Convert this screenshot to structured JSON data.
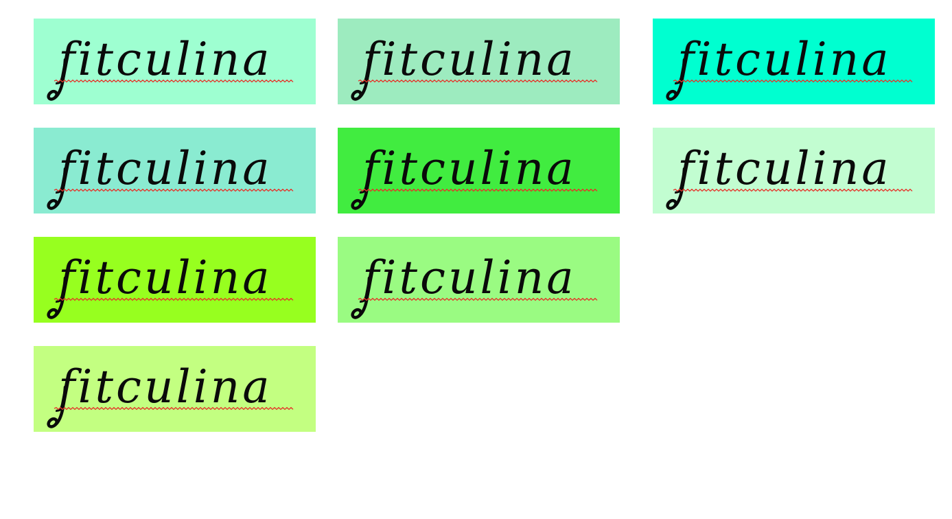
{
  "tiles": [
    {
      "text": "fitculina",
      "bg": "#9effd1"
    },
    {
      "text": "fitculina",
      "bg": "#9debbf"
    },
    {
      "text": "fitculina",
      "bg": "#00ffd0"
    },
    {
      "text": "fitculina",
      "bg": "#8aebd1"
    },
    {
      "text": "fitculina",
      "bg": "#41ec40"
    },
    {
      "text": "fitculina",
      "bg": "#c2fdd1"
    },
    {
      "text": "fitculina",
      "bg": "#97ff1f"
    },
    {
      "text": "fitculina",
      "bg": "#9afb82"
    },
    {
      "text": "fitculina",
      "bg": "#c3ff81"
    }
  ]
}
